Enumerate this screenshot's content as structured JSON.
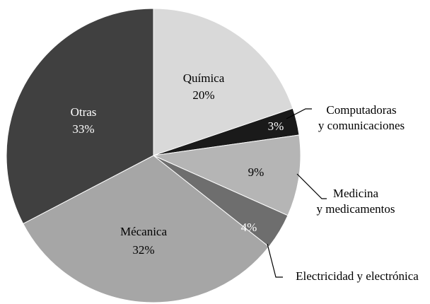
{
  "chart_data": {
    "type": "pie",
    "categories": [
      "Química",
      "Computadoras\ny comunicaciones",
      "Medicina\ny medicamentos",
      "Electricidad y electrónica",
      "Mécanica",
      "Otras"
    ],
    "values": [
      20,
      3,
      9,
      4,
      32,
      33
    ],
    "value_labels": [
      "20%",
      "3%",
      "9%",
      "4%",
      "32%",
      "33%"
    ],
    "colors": [
      "#d9d9d9",
      "#1a1a1a",
      "#b5b5b5",
      "#6e6e6e",
      "#a6a6a6",
      "#404040"
    ]
  }
}
